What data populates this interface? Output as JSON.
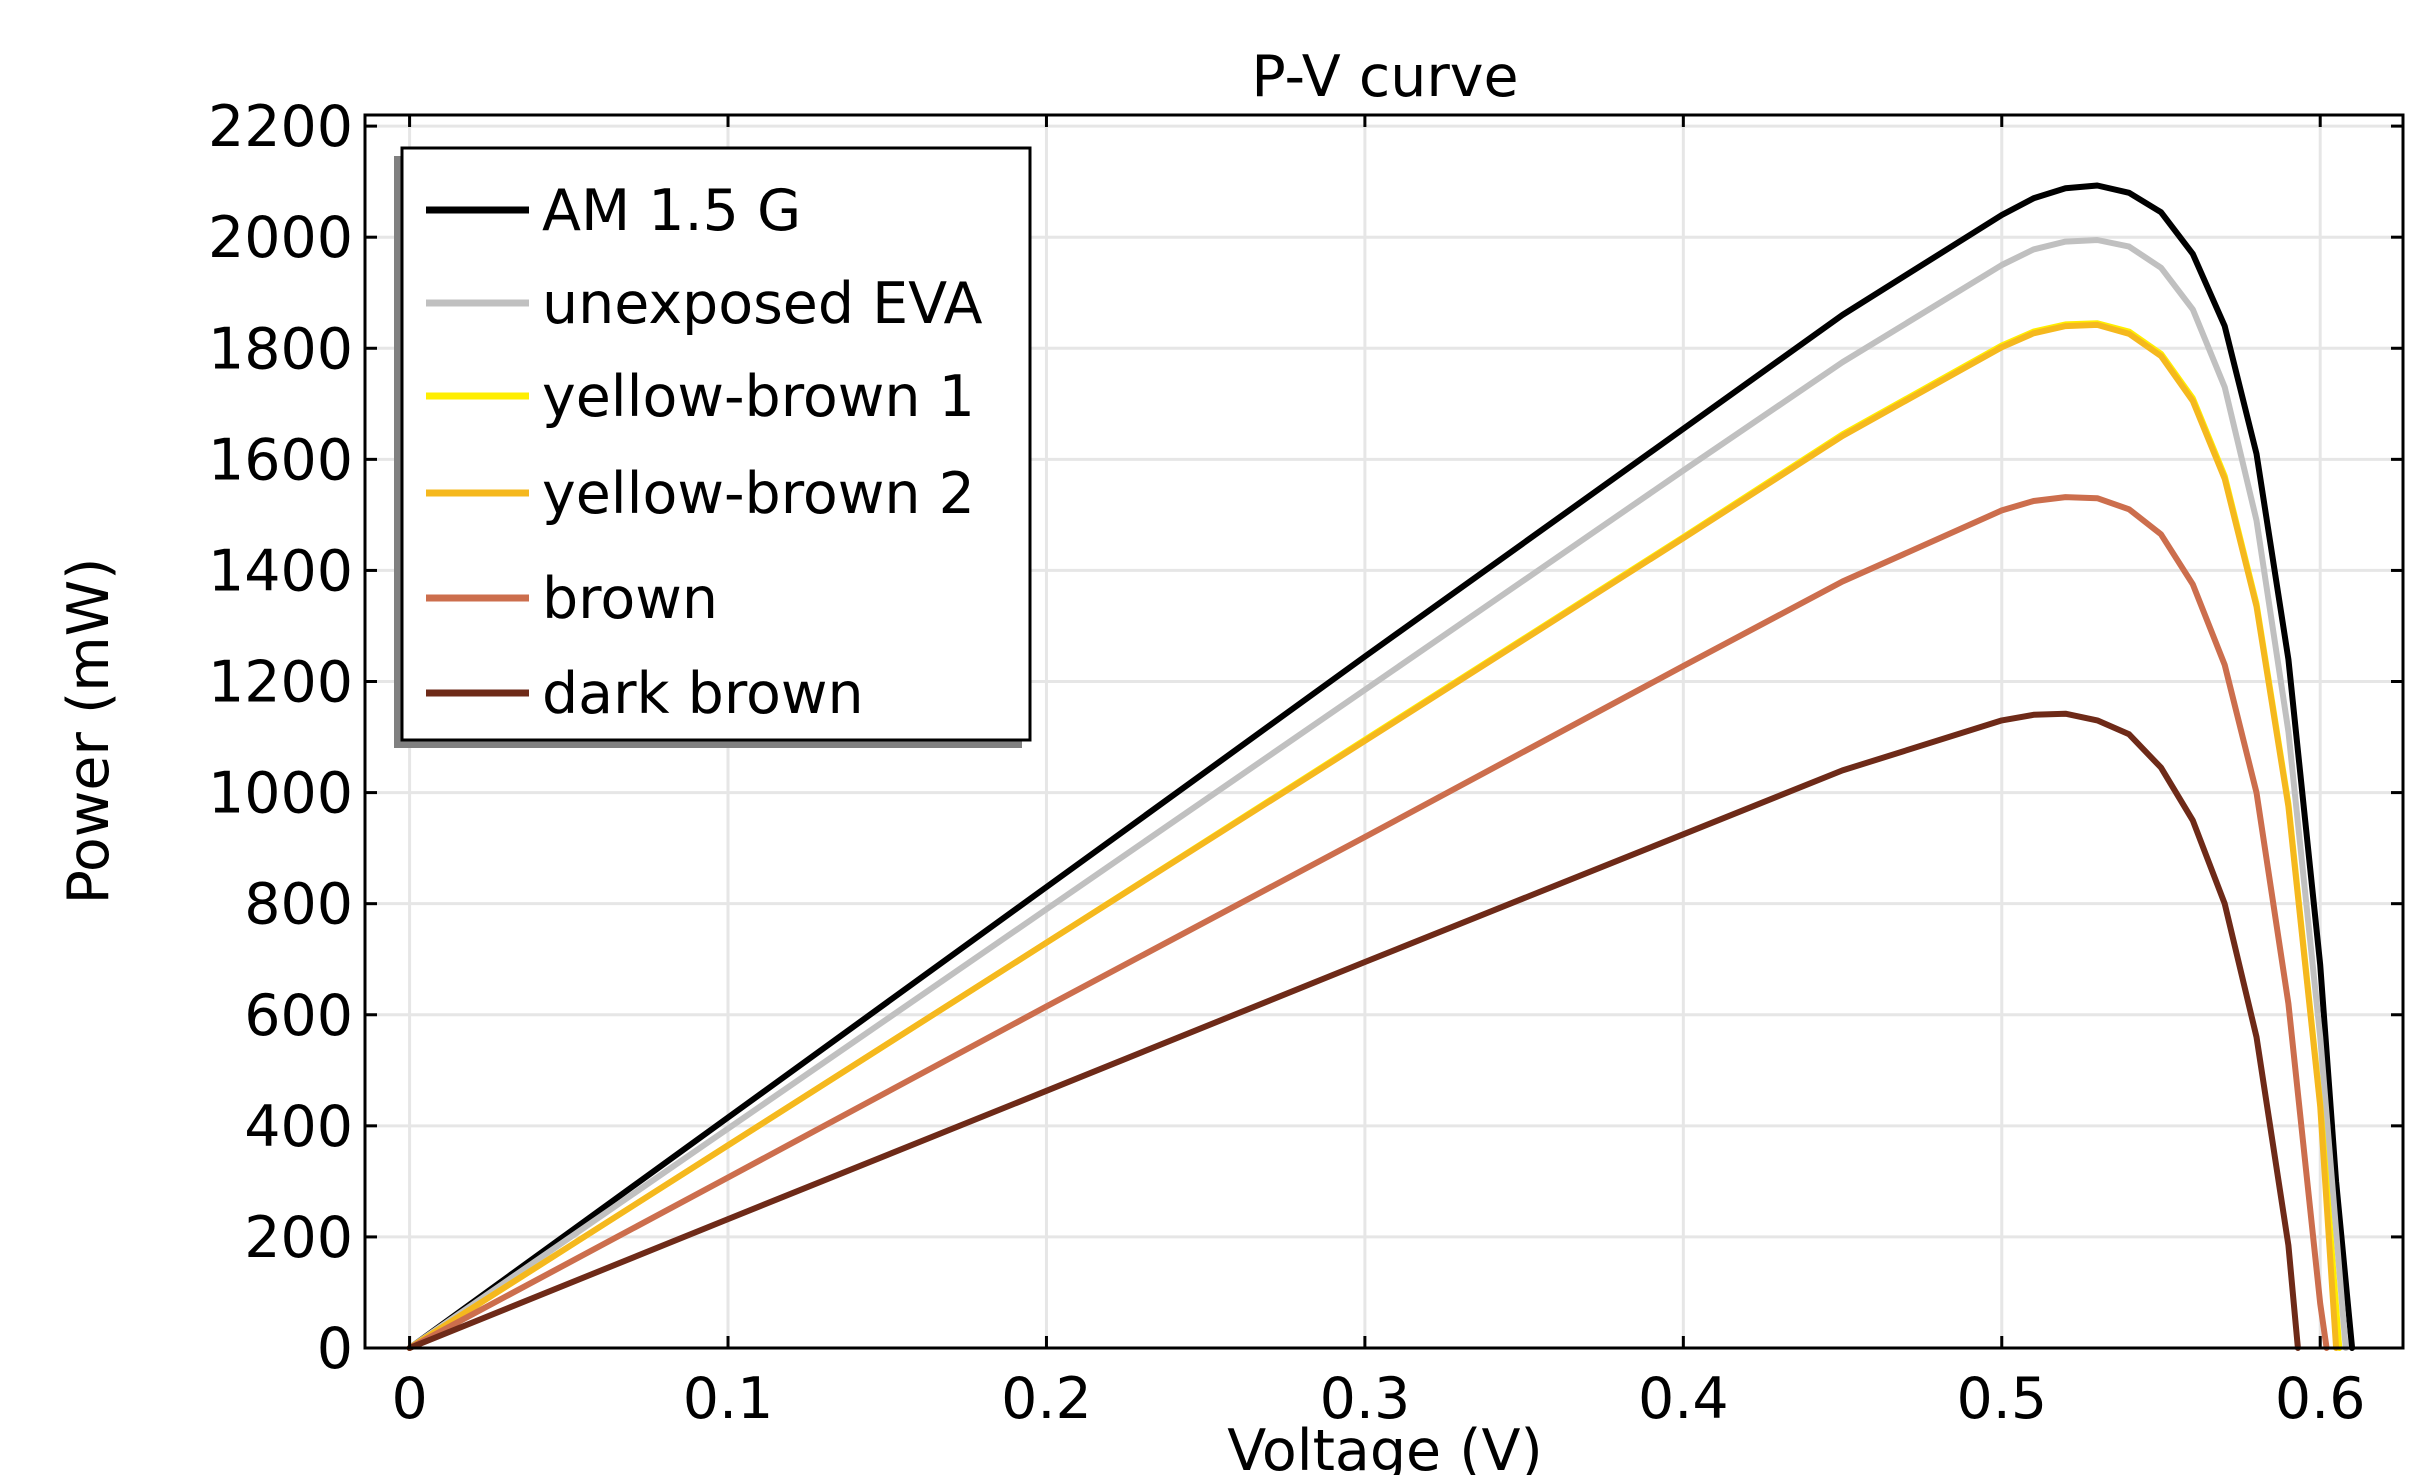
{
  "chart_data": {
    "type": "line",
    "title": "P-V curve",
    "xlabel": "Voltage (V)",
    "ylabel": "Power (mW)",
    "xlim": [
      -0.014,
      0.626
    ],
    "ylim": [
      0,
      2220
    ],
    "x_ticks": [
      0,
      0.1,
      0.2,
      0.3,
      0.4,
      0.5,
      0.6
    ],
    "x_tick_labels": [
      "0",
      "0.1",
      "0.2",
      "0.3",
      "0.4",
      "0.5",
      "0.6"
    ],
    "y_ticks": [
      0,
      200,
      400,
      600,
      800,
      1000,
      1200,
      1400,
      1600,
      1800,
      2000,
      2200
    ],
    "y_tick_labels": [
      "0",
      "200",
      "400",
      "600",
      "800",
      "1000",
      "1200",
      "1400",
      "1600",
      "1800",
      "2000",
      "2200"
    ],
    "grid": true,
    "legend_position": "top-left",
    "series": [
      {
        "name": "AM 1.5 G",
        "color": "#000000",
        "x": [
          0,
          0.1,
          0.2,
          0.3,
          0.4,
          0.45,
          0.5,
          0.51,
          0.52,
          0.53,
          0.54,
          0.55,
          0.56,
          0.57,
          0.58,
          0.59,
          0.6,
          0.605,
          0.61
        ],
        "y": [
          0,
          415,
          830,
          1245,
          1655,
          1860,
          2040,
          2070,
          2088,
          2093,
          2080,
          2045,
          1970,
          1840,
          1610,
          1240,
          690,
          300,
          0
        ]
      },
      {
        "name": "unexposed EVA",
        "color": "#c0c0c0",
        "x": [
          0,
          0.1,
          0.2,
          0.3,
          0.4,
          0.45,
          0.5,
          0.51,
          0.52,
          0.53,
          0.54,
          0.55,
          0.56,
          0.57,
          0.58,
          0.59,
          0.6,
          0.608
        ],
        "y": [
          0,
          395,
          790,
          1185,
          1580,
          1775,
          1950,
          1978,
          1992,
          1995,
          1983,
          1945,
          1870,
          1730,
          1490,
          1110,
          560,
          0
        ]
      },
      {
        "name": "yellow-brown 1",
        "color": "#ffee00",
        "x": [
          0,
          0.1,
          0.2,
          0.3,
          0.4,
          0.45,
          0.5,
          0.51,
          0.52,
          0.53,
          0.54,
          0.55,
          0.56,
          0.57,
          0.58,
          0.59,
          0.6,
          0.606
        ],
        "y": [
          0,
          365,
          730,
          1095,
          1460,
          1645,
          1805,
          1830,
          1843,
          1845,
          1830,
          1790,
          1710,
          1570,
          1340,
          980,
          440,
          0
        ]
      },
      {
        "name": "yellow-brown 2",
        "color": "#f5b81e",
        "x": [
          0,
          0.1,
          0.2,
          0.3,
          0.4,
          0.45,
          0.5,
          0.51,
          0.52,
          0.53,
          0.54,
          0.55,
          0.56,
          0.57,
          0.58,
          0.59,
          0.6,
          0.605
        ],
        "y": [
          0,
          365,
          730,
          1093,
          1458,
          1642,
          1802,
          1827,
          1840,
          1842,
          1826,
          1786,
          1705,
          1565,
          1335,
          975,
          435,
          0
        ]
      },
      {
        "name": "brown",
        "color": "#cc6e4d",
        "x": [
          0,
          0.1,
          0.2,
          0.3,
          0.4,
          0.45,
          0.5,
          0.51,
          0.52,
          0.53,
          0.54,
          0.55,
          0.56,
          0.57,
          0.58,
          0.59,
          0.6,
          0.602
        ],
        "y": [
          0,
          307,
          615,
          920,
          1228,
          1380,
          1508,
          1525,
          1532,
          1530,
          1510,
          1465,
          1375,
          1230,
          1000,
          620,
          80,
          0
        ]
      },
      {
        "name": "dark brown",
        "color": "#6e2a18",
        "x": [
          0,
          0.1,
          0.2,
          0.3,
          0.4,
          0.45,
          0.5,
          0.51,
          0.52,
          0.53,
          0.54,
          0.55,
          0.56,
          0.57,
          0.58,
          0.59,
          0.593
        ],
        "y": [
          0,
          232,
          463,
          695,
          925,
          1040,
          1130,
          1140,
          1142,
          1130,
          1105,
          1045,
          950,
          800,
          560,
          185,
          0
        ]
      }
    ]
  }
}
